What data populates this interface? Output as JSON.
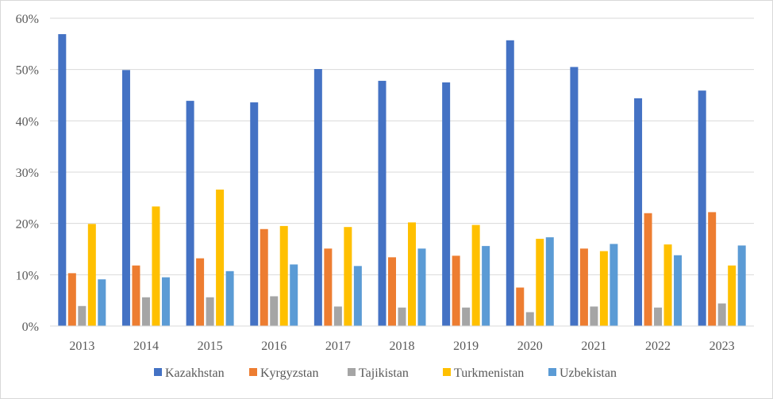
{
  "chart_data": {
    "type": "bar",
    "title": "",
    "xlabel": "",
    "ylabel": "",
    "ylim": [
      0,
      0.6
    ],
    "yticks": [
      0,
      0.1,
      0.2,
      0.3,
      0.4,
      0.5,
      0.6
    ],
    "ytick_labels": [
      "0%",
      "10%",
      "20%",
      "30%",
      "40%",
      "50%",
      "60%"
    ],
    "grid": true,
    "legend_position": "bottom",
    "categories": [
      "2013",
      "2014",
      "2015",
      "2016",
      "2017",
      "2018",
      "2019",
      "2020",
      "2021",
      "2022",
      "2023"
    ],
    "series": [
      {
        "name": "Kazakhstan",
        "color": "#4472c4",
        "values": [
          0.569,
          0.499,
          0.439,
          0.436,
          0.501,
          0.478,
          0.475,
          0.557,
          0.505,
          0.444,
          0.459
        ]
      },
      {
        "name": "Kyrgyzstan",
        "color": "#ed7d31",
        "values": [
          0.103,
          0.118,
          0.132,
          0.189,
          0.151,
          0.134,
          0.137,
          0.075,
          0.151,
          0.22,
          0.222
        ]
      },
      {
        "name": "Tajikistan",
        "color": "#a5a5a5",
        "values": [
          0.039,
          0.056,
          0.056,
          0.058,
          0.038,
          0.036,
          0.036,
          0.027,
          0.038,
          0.036,
          0.044
        ]
      },
      {
        "name": "Turkmenistan",
        "color": "#ffc000",
        "values": [
          0.199,
          0.233,
          0.266,
          0.195,
          0.193,
          0.202,
          0.197,
          0.17,
          0.146,
          0.159,
          0.118
        ]
      },
      {
        "name": "Uzbekistan",
        "color": "#5b9bd5",
        "values": [
          0.091,
          0.095,
          0.107,
          0.12,
          0.117,
          0.151,
          0.156,
          0.173,
          0.16,
          0.138,
          0.157
        ]
      }
    ]
  }
}
